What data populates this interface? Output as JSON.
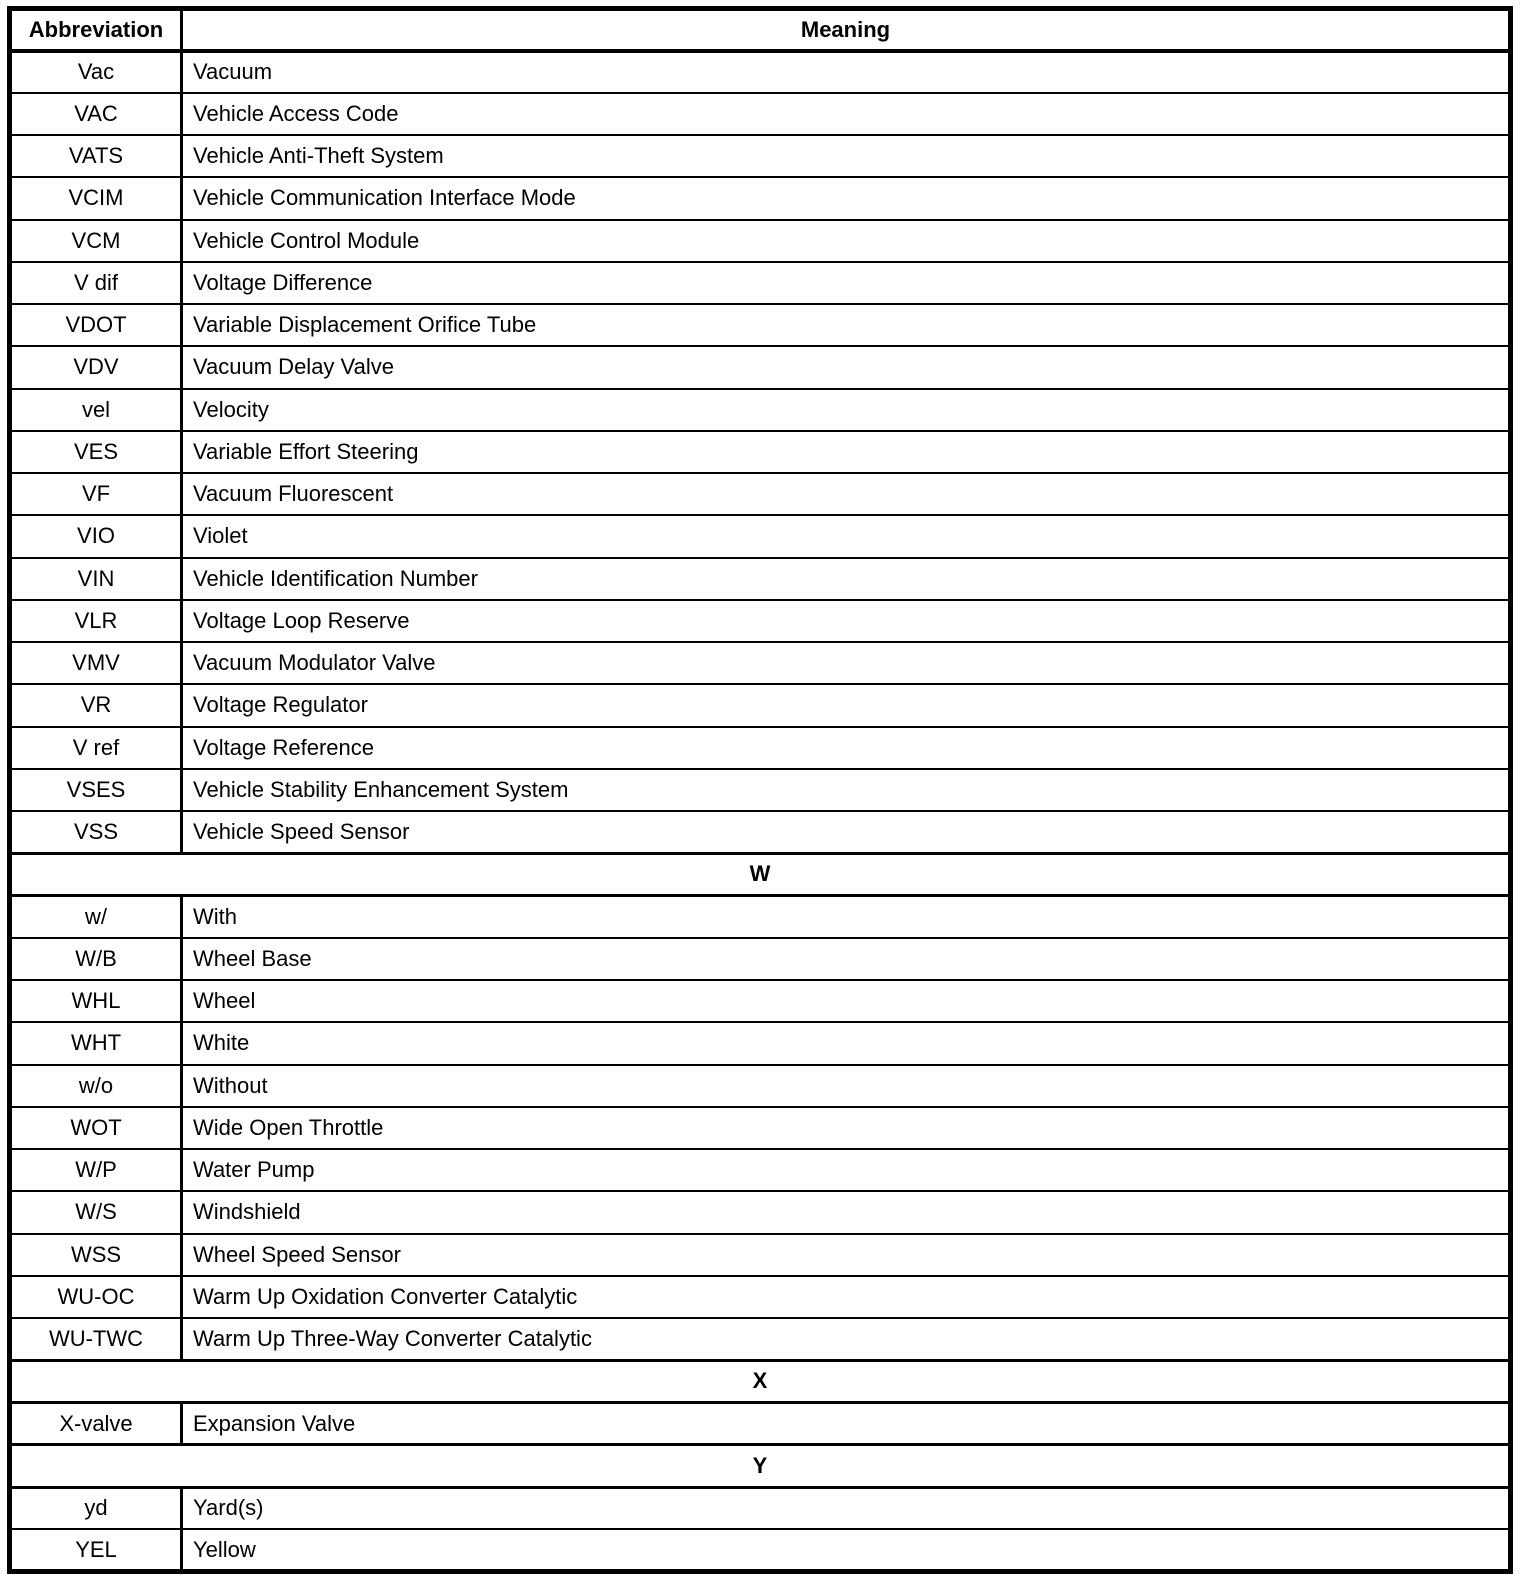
{
  "table": {
    "headers": {
      "abbreviation": "Abbreviation",
      "meaning": "Meaning"
    },
    "rows": [
      {
        "abbr": "Vac",
        "meaning": "Vacuum"
      },
      {
        "abbr": "VAC",
        "meaning": "Vehicle Access Code"
      },
      {
        "abbr": "VATS",
        "meaning": "Vehicle Anti-Theft System"
      },
      {
        "abbr": "VCIM",
        "meaning": "Vehicle Communication Interface Mode"
      },
      {
        "abbr": "VCM",
        "meaning": "Vehicle Control Module"
      },
      {
        "abbr": "V dif",
        "meaning": "Voltage Difference"
      },
      {
        "abbr": "VDOT",
        "meaning": "Variable Displacement Orifice Tube"
      },
      {
        "abbr": "VDV",
        "meaning": "Vacuum Delay Valve"
      },
      {
        "abbr": "vel",
        "meaning": "Velocity"
      },
      {
        "abbr": "VES",
        "meaning": "Variable Effort Steering"
      },
      {
        "abbr": "VF",
        "meaning": "Vacuum Fluorescent"
      },
      {
        "abbr": "VIO",
        "meaning": "Violet"
      },
      {
        "abbr": "VIN",
        "meaning": "Vehicle Identification Number"
      },
      {
        "abbr": "VLR",
        "meaning": "Voltage Loop Reserve"
      },
      {
        "abbr": "VMV",
        "meaning": "Vacuum Modulator Valve"
      },
      {
        "abbr": "VR",
        "meaning": "Voltage Regulator"
      },
      {
        "abbr": "V ref",
        "meaning": "Voltage Reference"
      },
      {
        "abbr": "VSES",
        "meaning": "Vehicle Stability Enhancement System"
      },
      {
        "abbr": "VSS",
        "meaning": "Vehicle Speed Sensor"
      },
      {
        "section": "W"
      },
      {
        "abbr": "w/",
        "meaning": "With"
      },
      {
        "abbr": "W/B",
        "meaning": "Wheel Base"
      },
      {
        "abbr": "WHL",
        "meaning": "Wheel"
      },
      {
        "abbr": "WHT",
        "meaning": "White"
      },
      {
        "abbr": "w/o",
        "meaning": "Without"
      },
      {
        "abbr": "WOT",
        "meaning": "Wide Open Throttle"
      },
      {
        "abbr": "W/P",
        "meaning": "Water Pump"
      },
      {
        "abbr": "W/S",
        "meaning": "Windshield"
      },
      {
        "abbr": "WSS",
        "meaning": "Wheel Speed Sensor"
      },
      {
        "abbr": "WU-OC",
        "meaning": "Warm Up Oxidation Converter Catalytic"
      },
      {
        "abbr": "WU-TWC",
        "meaning": "Warm Up Three-Way Converter Catalytic"
      },
      {
        "section": "X"
      },
      {
        "abbr": "X-valve",
        "meaning": "Expansion Valve"
      },
      {
        "section": "Y"
      },
      {
        "abbr": "yd",
        "meaning": "Yard(s)"
      },
      {
        "abbr": "YEL",
        "meaning": "Yellow"
      }
    ],
    "colors": {
      "text": "#000000",
      "border": "#000000",
      "background": "#ffffff"
    }
  }
}
